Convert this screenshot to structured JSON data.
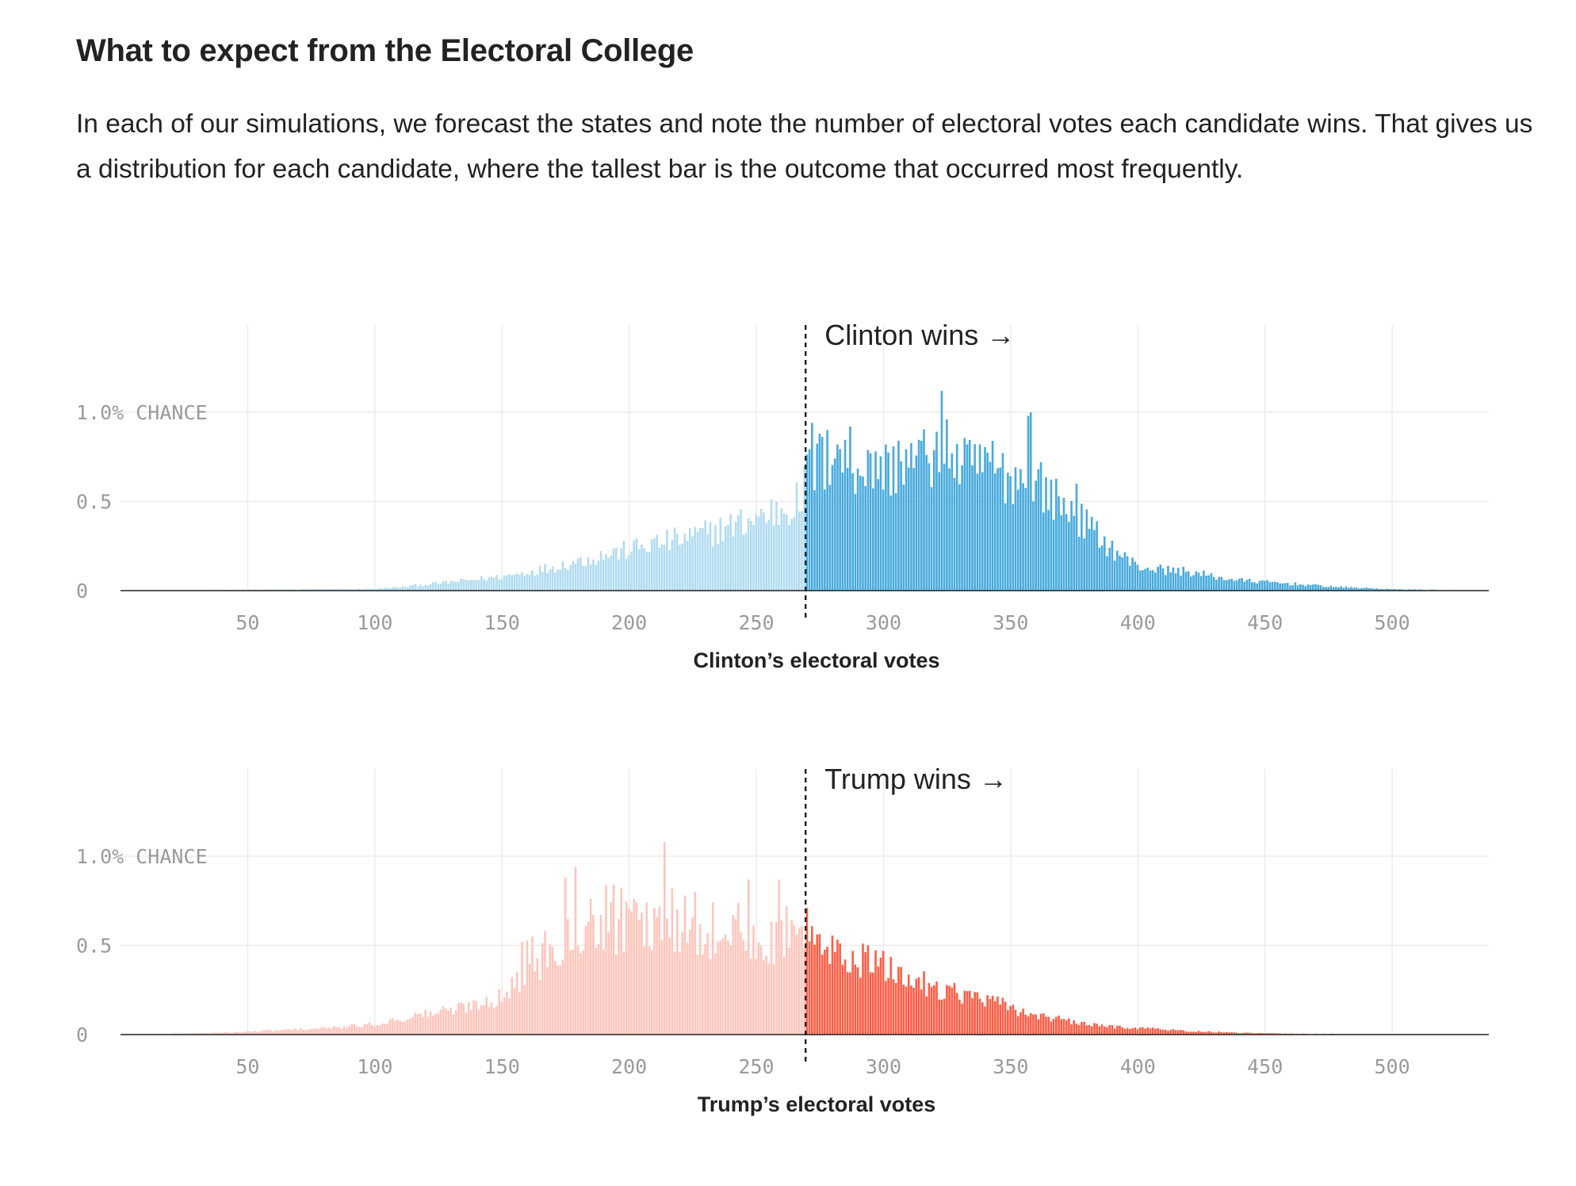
{
  "header": {
    "title": "What to expect from the Electoral College",
    "description": "In each of our simulations, we forecast the states and note the number of electoral votes each candidate wins. That gives us a distribution for each candidate, where the tallest bar is the outcome that occurred most frequently."
  },
  "colors": {
    "clinton_win": "#48aadd",
    "clinton_lose": "#b2dcf0",
    "trump_win": "#ff5c45",
    "trump_lose": "#ffc5bb",
    "gridline": "#ececec",
    "baseline": "#222222",
    "threshold_line": "#222222"
  },
  "chart_data": [
    {
      "type": "bar",
      "candidate": "Clinton",
      "xlabel": "Clinton’s electoral votes",
      "annotation": "Clinton wins →",
      "threshold": 270,
      "xlim": [
        0,
        538
      ],
      "ylim": [
        0,
        1.4
      ],
      "x_ticks": [
        50,
        100,
        150,
        200,
        250,
        300,
        350,
        400,
        450,
        500
      ],
      "x_tick_labels": [
        "50",
        "100",
        "150",
        "200",
        "250",
        "300",
        "350",
        "400",
        "450",
        "500"
      ],
      "y_ticks": [
        0,
        0.5,
        1.0
      ],
      "y_tick_labels": [
        "0",
        "0.5",
        "1.0% CHANCE"
      ],
      "grid": true,
      "x_range": [
        0,
        538
      ],
      "control_points": [
        [
          0,
          0
        ],
        [
          100,
          0.01
        ],
        [
          110,
          0.02
        ],
        [
          130,
          0.05
        ],
        [
          150,
          0.08
        ],
        [
          165,
          0.12
        ],
        [
          180,
          0.17
        ],
        [
          195,
          0.22
        ],
        [
          210,
          0.27
        ],
        [
          225,
          0.31
        ],
        [
          240,
          0.37
        ],
        [
          250,
          0.42
        ],
        [
          260,
          0.47
        ],
        [
          268,
          0.52
        ],
        [
          270,
          0.68
        ],
        [
          280,
          0.76
        ],
        [
          290,
          0.72
        ],
        [
          300,
          0.7
        ],
        [
          310,
          0.73
        ],
        [
          320,
          0.78
        ],
        [
          330,
          0.72
        ],
        [
          340,
          0.7
        ],
        [
          350,
          0.66
        ],
        [
          360,
          0.62
        ],
        [
          370,
          0.5
        ],
        [
          380,
          0.38
        ],
        [
          390,
          0.24
        ],
        [
          400,
          0.14
        ],
        [
          410,
          0.12
        ],
        [
          420,
          0.11
        ],
        [
          430,
          0.08
        ],
        [
          440,
          0.06
        ],
        [
          450,
          0.05
        ],
        [
          460,
          0.04
        ],
        [
          470,
          0.03
        ],
        [
          480,
          0.02
        ],
        [
          490,
          0.015
        ],
        [
          500,
          0.008
        ],
        [
          520,
          0.004
        ],
        [
          538,
          0
        ]
      ],
      "spikes": [
        [
          272,
          0.94
        ],
        [
          275,
          0.88
        ],
        [
          278,
          0.9
        ],
        [
          282,
          0.82
        ],
        [
          287,
          0.92
        ],
        [
          295,
          0.77
        ],
        [
          297,
          0.78
        ],
        [
          306,
          0.84
        ],
        [
          315,
          0.84
        ],
        [
          317,
          0.76
        ],
        [
          323,
          1.12
        ],
        [
          325,
          0.96
        ],
        [
          333,
          0.82
        ],
        [
          338,
          0.82
        ],
        [
          343,
          0.84
        ],
        [
          346,
          0.69
        ],
        [
          357,
          0.98
        ],
        [
          358,
          1.0
        ],
        [
          362,
          0.72
        ],
        [
          376,
          0.6
        ]
      ]
    },
    {
      "type": "bar",
      "candidate": "Trump",
      "xlabel": "Trump’s electoral votes",
      "annotation": "Trump wins →",
      "threshold": 270,
      "xlim": [
        0,
        538
      ],
      "ylim": [
        0,
        1.4
      ],
      "x_ticks": [
        50,
        100,
        150,
        200,
        250,
        300,
        350,
        400,
        450,
        500
      ],
      "x_tick_labels": [
        "50",
        "100",
        "150",
        "200",
        "250",
        "300",
        "350",
        "400",
        "450",
        "500"
      ],
      "y_ticks": [
        0,
        0.5,
        1.0
      ],
      "y_tick_labels": [
        "0",
        "0.5",
        "1.0% CHANCE"
      ],
      "grid": true,
      "x_range": [
        0,
        538
      ],
      "control_points": [
        [
          0,
          0
        ],
        [
          40,
          0.01
        ],
        [
          55,
          0.02
        ],
        [
          70,
          0.03
        ],
        [
          85,
          0.04
        ],
        [
          100,
          0.06
        ],
        [
          110,
          0.09
        ],
        [
          120,
          0.12
        ],
        [
          130,
          0.14
        ],
        [
          140,
          0.18
        ],
        [
          150,
          0.22
        ],
        [
          158,
          0.32
        ],
        [
          165,
          0.42
        ],
        [
          175,
          0.55
        ],
        [
          185,
          0.6
        ],
        [
          195,
          0.62
        ],
        [
          205,
          0.62
        ],
        [
          215,
          0.64
        ],
        [
          225,
          0.58
        ],
        [
          235,
          0.56
        ],
        [
          245,
          0.55
        ],
        [
          255,
          0.54
        ],
        [
          265,
          0.55
        ],
        [
          270,
          0.55
        ],
        [
          275,
          0.5
        ],
        [
          285,
          0.45
        ],
        [
          295,
          0.42
        ],
        [
          305,
          0.35
        ],
        [
          315,
          0.3
        ],
        [
          325,
          0.26
        ],
        [
          335,
          0.22
        ],
        [
          345,
          0.18
        ],
        [
          355,
          0.13
        ],
        [
          365,
          0.1
        ],
        [
          375,
          0.07
        ],
        [
          385,
          0.05
        ],
        [
          400,
          0.04
        ],
        [
          420,
          0.02
        ],
        [
          440,
          0.01
        ],
        [
          460,
          0.005
        ],
        [
          500,
          0.002
        ],
        [
          538,
          0
        ]
      ],
      "spikes": [
        [
          158,
          0.52
        ],
        [
          160,
          0.53
        ],
        [
          162,
          0.55
        ],
        [
          167,
          0.58
        ],
        [
          175,
          0.88
        ],
        [
          179,
          0.94
        ],
        [
          185,
          0.76
        ],
        [
          191,
          0.84
        ],
        [
          194,
          0.84
        ],
        [
          197,
          0.82
        ],
        [
          202,
          0.76
        ],
        [
          207,
          0.74
        ],
        [
          210,
          0.71
        ],
        [
          214,
          1.08
        ],
        [
          217,
          0.82
        ],
        [
          222,
          0.78
        ],
        [
          226,
          0.8
        ],
        [
          233,
          0.74
        ],
        [
          243,
          0.74
        ],
        [
          247,
          0.87
        ],
        [
          259,
          0.87
        ],
        [
          262,
          0.72
        ],
        [
          270,
          0.71
        ]
      ]
    }
  ]
}
